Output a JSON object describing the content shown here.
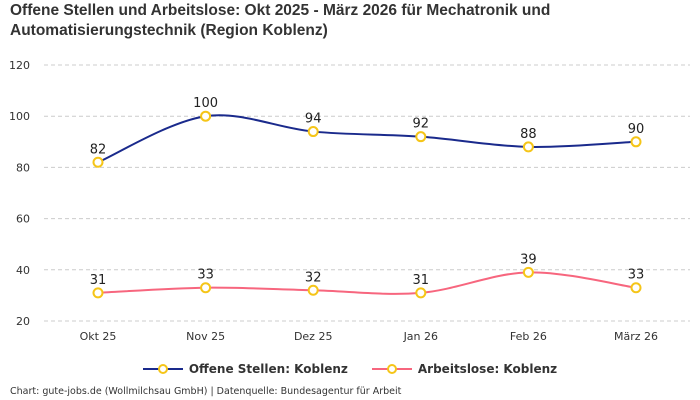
{
  "title": "Offene Stellen und Arbeitslose: Okt 2025 - März 2026 für Mechatronik und Automatisierungstechnik (Region Koblenz)",
  "footer": "Chart: gute-jobs.de (Wollmilchsau GmbH) | Datenquelle: Bundesagentur für Arbeit",
  "chart_data": {
    "type": "line",
    "title": "Offene Stellen und Arbeitslose: Okt 2025 - März 2026 für Mechatronik und Automatisierungstechnik (Region Koblenz)",
    "categories": [
      "Okt 25",
      "Nov 25",
      "Dez 25",
      "Jan 26",
      "Feb 26",
      "März 26"
    ],
    "ylim": [
      20,
      120
    ],
    "yticks": [
      20,
      40,
      60,
      80,
      100,
      120
    ],
    "grid": true,
    "legend": "bottom",
    "series": [
      {
        "name": "Offene Stellen: Koblenz",
        "color": "#1a2a8c",
        "values": [
          82,
          100,
          94,
          92,
          88,
          90
        ]
      },
      {
        "name": "Arbeitslose: Koblenz",
        "color": "#f7667e",
        "values": [
          31,
          33,
          32,
          31,
          39,
          33
        ]
      }
    ],
    "marker_color": "#f5c518"
  }
}
